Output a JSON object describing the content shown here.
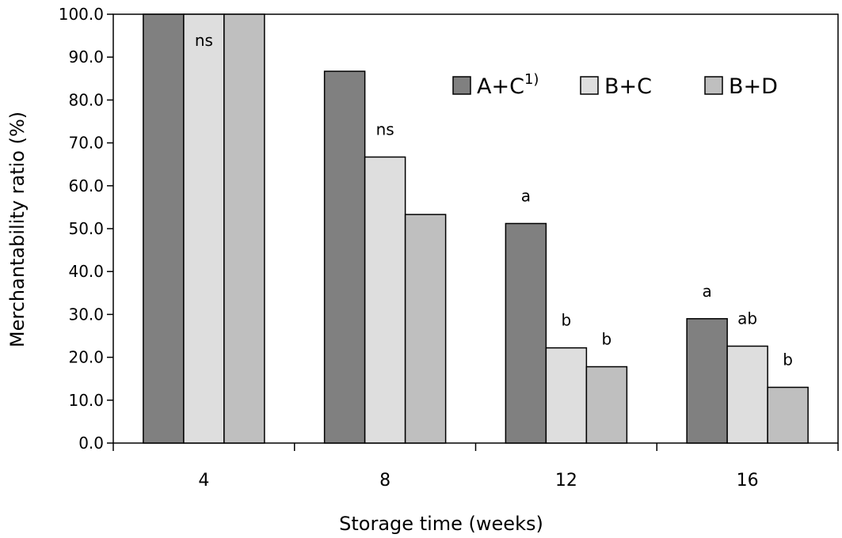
{
  "chart_data": {
    "type": "bar",
    "xlabel": "Storage time (weeks)",
    "ylabel": "Merchantability ratio (%)",
    "ylim": [
      0,
      100
    ],
    "ytick_step": 10,
    "ytick_labels": [
      "0.0",
      "10.0",
      "20.0",
      "30.0",
      "40.0",
      "50.0",
      "60.0",
      "70.0",
      "80.0",
      "90.0",
      "100.0"
    ],
    "categories": [
      "4",
      "8",
      "12",
      "16"
    ],
    "series": [
      {
        "name": "A+C",
        "name_superscript": "1)",
        "color": "#808080",
        "values": [
          100.0,
          86.7,
          51.2,
          29.0
        ]
      },
      {
        "name": "B+C",
        "color": "#dedede",
        "values": [
          100.0,
          66.7,
          22.2,
          22.6
        ]
      },
      {
        "name": "B+D",
        "color": "#bfbfbf",
        "values": [
          100.0,
          53.3,
          17.8,
          13.0
        ]
      }
    ],
    "significance": [
      [
        "",
        "ns",
        ""
      ],
      [
        "",
        "ns",
        ""
      ],
      [
        "a",
        "b",
        "b"
      ],
      [
        "a",
        "ab",
        "b"
      ]
    ],
    "legend_position": "top-right",
    "grid": false
  }
}
